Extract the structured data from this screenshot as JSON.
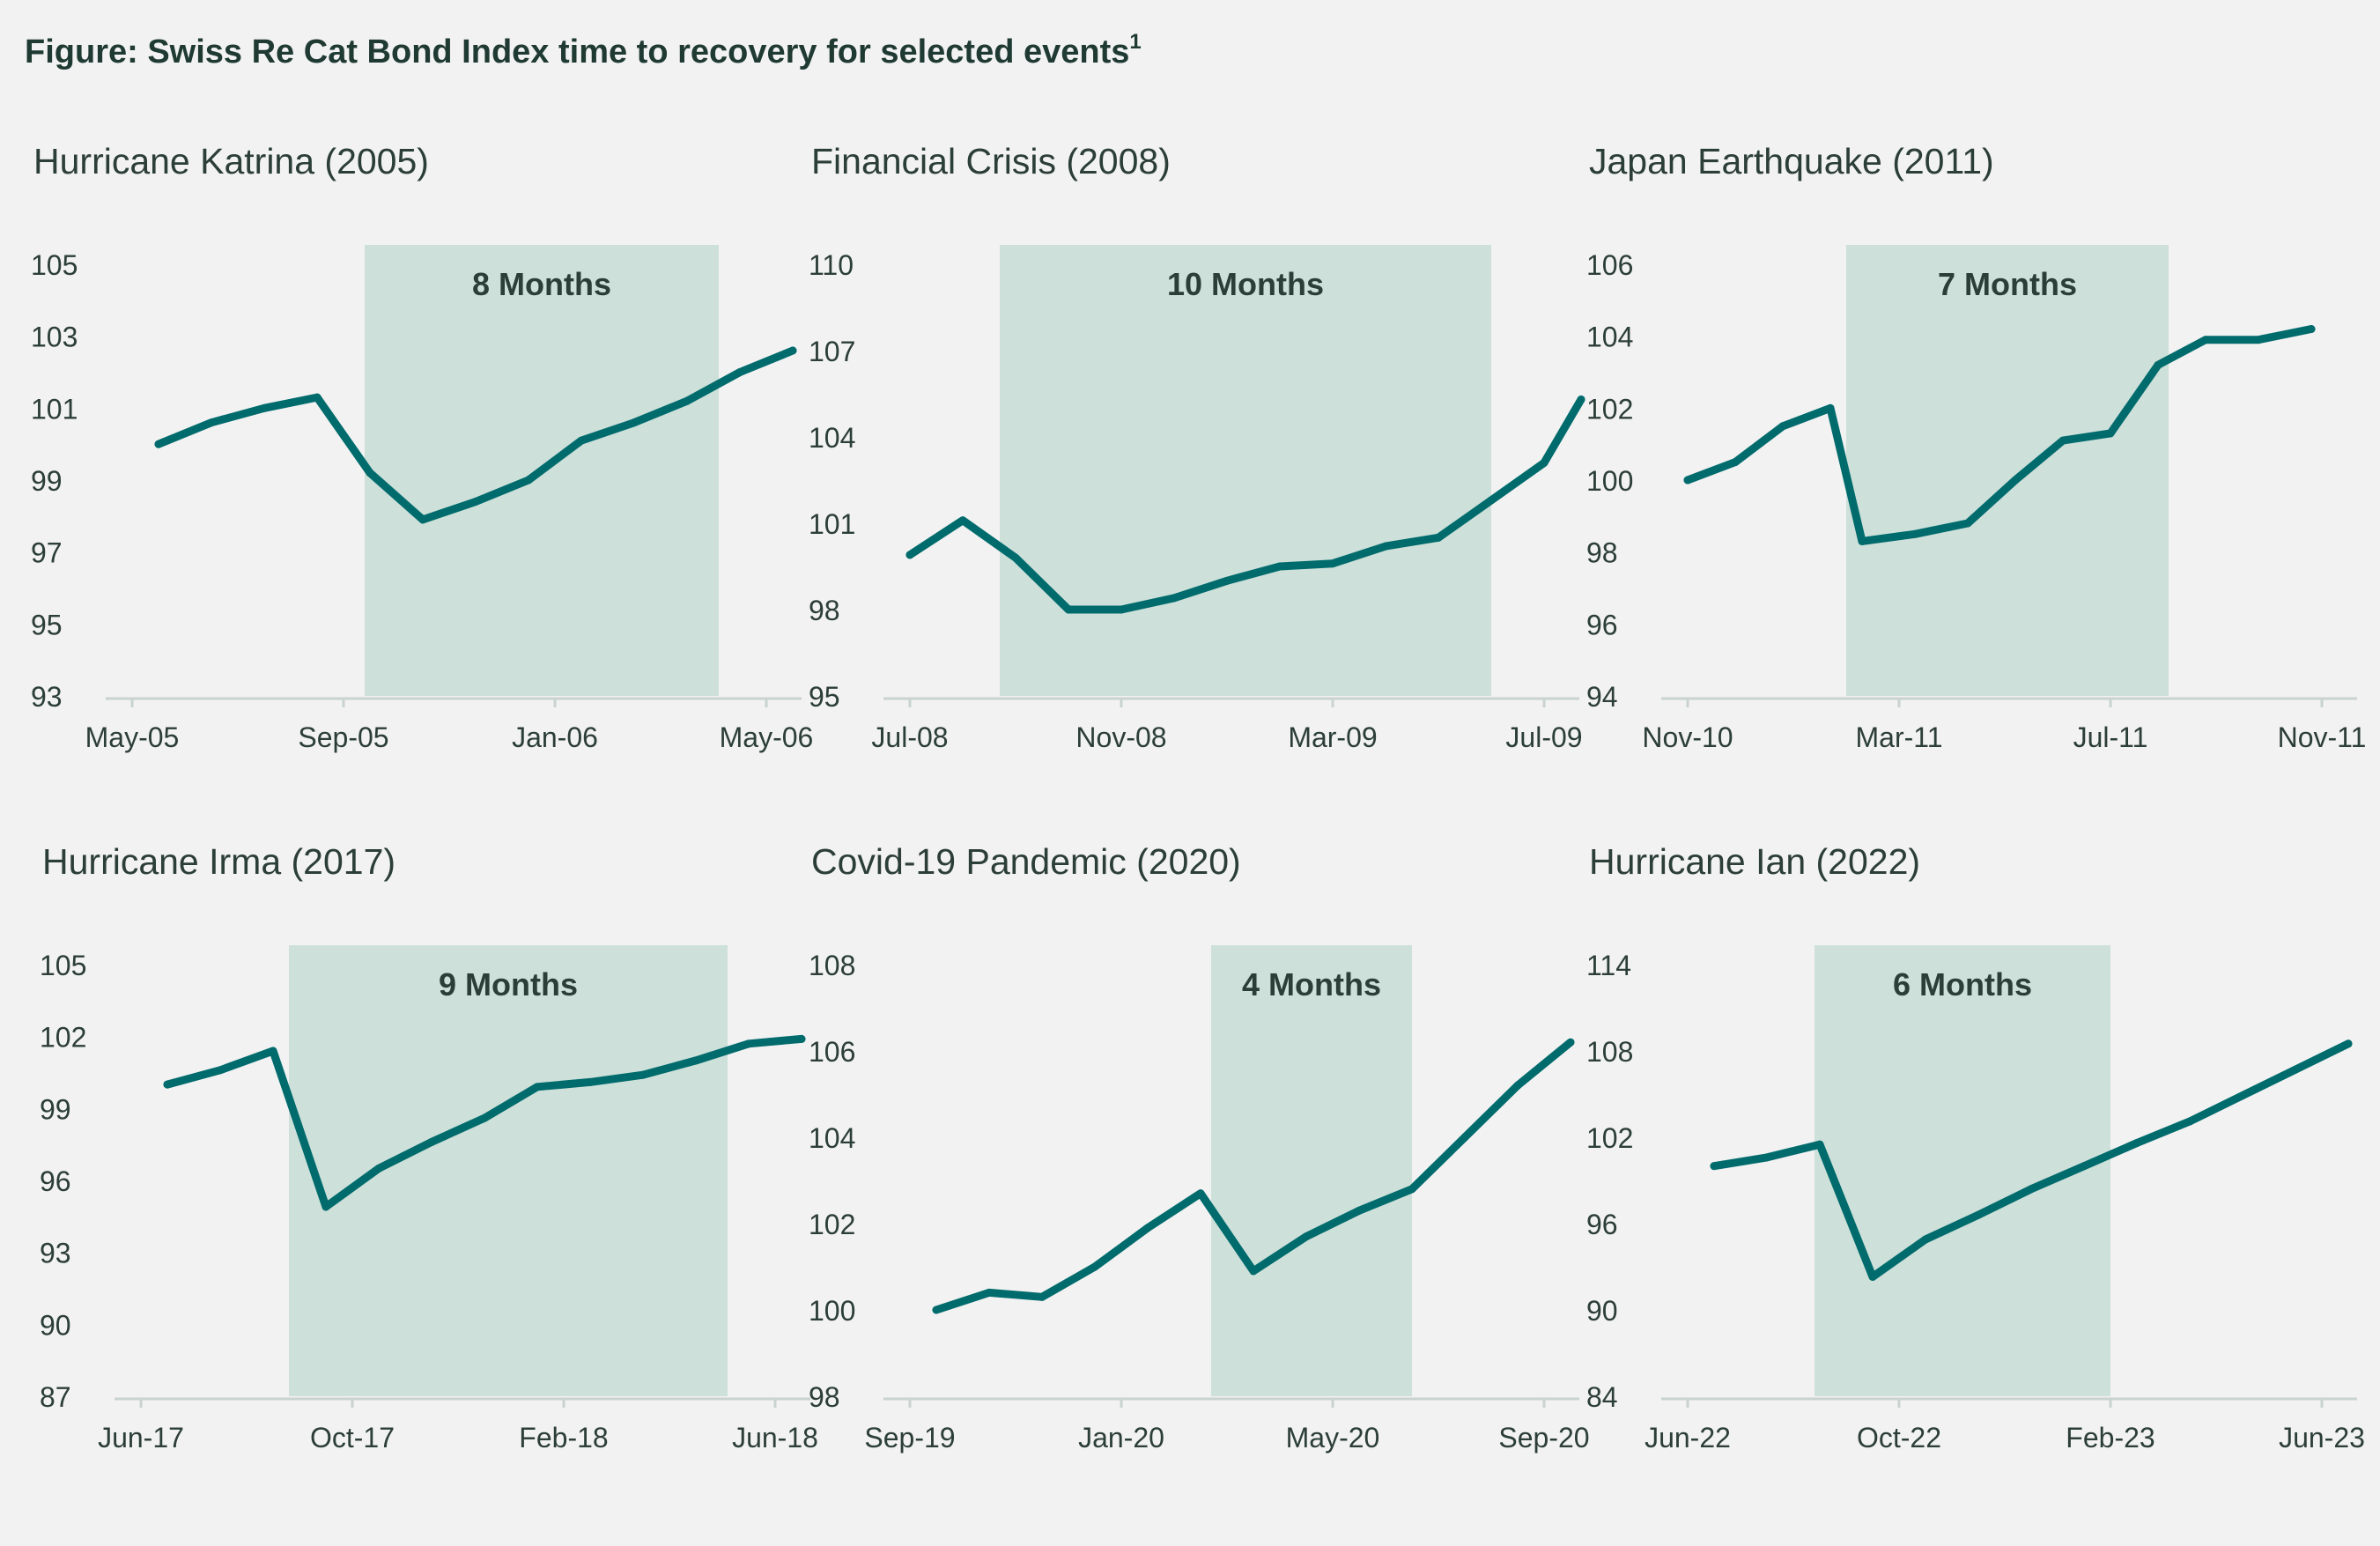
{
  "figure": {
    "title": "Figure: Swiss Re Cat Bond Index time to recovery for selected events",
    "footnote_marker": "1"
  },
  "colors": {
    "background": "#f2f2f2",
    "line": "#006b6c",
    "shade": "#cde0da",
    "axis": "#c9d3d0",
    "text": "#2c3e38"
  },
  "chart_data": [
    {
      "type": "line",
      "title": "Hurricane Katrina (2005)",
      "shade_label": "8 Months",
      "shade_range": [
        4.4,
        11.1
      ],
      "yticks": [
        93,
        95,
        97,
        99,
        101,
        103,
        105
      ],
      "ylim": [
        93,
        105
      ],
      "xlim": [
        0,
        12
      ],
      "xticks": [
        {
          "x": 0,
          "label": "May-05"
        },
        {
          "x": 4,
          "label": "Sep-05"
        },
        {
          "x": 8,
          "label": "Jan-06"
        },
        {
          "x": 12,
          "label": "May-06"
        }
      ],
      "series": [
        {
          "x": [
            0.5,
            1.5,
            2.5,
            3.5,
            4.5,
            5.5,
            6.5,
            7.5,
            8.5,
            9.5,
            10.5,
            11.5,
            12.5
          ],
          "values": [
            100.0,
            100.6,
            101.0,
            101.3,
            99.2,
            97.9,
            98.4,
            99.0,
            100.1,
            100.6,
            101.2,
            102.0,
            102.6
          ]
        }
      ]
    },
    {
      "type": "line",
      "title": "Financial Crisis (2008)",
      "shade_label": "10 Months",
      "shade_range": [
        1.7,
        11.0
      ],
      "yticks": [
        95,
        98,
        101,
        104,
        107,
        110
      ],
      "ylim": [
        95,
        110
      ],
      "xlim": [
        0,
        12
      ],
      "xticks": [
        {
          "x": 0,
          "label": "Jul-08"
        },
        {
          "x": 4,
          "label": "Nov-08"
        },
        {
          "x": 8,
          "label": "Mar-09"
        },
        {
          "x": 12,
          "label": "Jul-09"
        }
      ],
      "series": [
        {
          "x": [
            0,
            1,
            2,
            3,
            4,
            5,
            6,
            7,
            8,
            9,
            10,
            11,
            12,
            12.7
          ],
          "values": [
            99.9,
            101.1,
            99.8,
            98.0,
            98.0,
            98.4,
            99.0,
            99.5,
            99.6,
            100.2,
            100.5,
            101.8,
            103.1,
            105.3
          ]
        }
      ]
    },
    {
      "type": "line",
      "title": "Japan Earthquake (2011)",
      "shade_label": "7 Months",
      "shade_range": [
        3.0,
        9.1
      ],
      "yticks": [
        94,
        96,
        98,
        100,
        102,
        104,
        106
      ],
      "ylim": [
        94,
        106
      ],
      "xlim": [
        0,
        12
      ],
      "xticks": [
        {
          "x": 0,
          "label": "Nov-10"
        },
        {
          "x": 4,
          "label": "Mar-11"
        },
        {
          "x": 8,
          "label": "Jul-11"
        },
        {
          "x": 12,
          "label": "Nov-11"
        }
      ],
      "series": [
        {
          "x": [
            0,
            0.9,
            1.8,
            2.7,
            3.3,
            4.3,
            5.3,
            6.2,
            7.1,
            8.0,
            8.9,
            9.8,
            10.8,
            11.8
          ],
          "values": [
            100.0,
            100.5,
            101.5,
            102.0,
            98.3,
            98.5,
            98.8,
            100.0,
            101.1,
            101.3,
            103.2,
            103.9,
            103.9,
            104.2
          ]
        }
      ]
    },
    {
      "type": "line",
      "title": "Hurricane Irma (2017)",
      "shade_label": "9 Months",
      "shade_range": [
        2.8,
        11.1
      ],
      "yticks": [
        87,
        90,
        93,
        96,
        99,
        102,
        105
      ],
      "ylim": [
        87,
        105
      ],
      "xlim": [
        0,
        12
      ],
      "xticks": [
        {
          "x": 0,
          "label": "Jun-17"
        },
        {
          "x": 4,
          "label": "Oct-17"
        },
        {
          "x": 8,
          "label": "Feb-18"
        },
        {
          "x": 12,
          "label": "Jun-18"
        }
      ],
      "series": [
        {
          "x": [
            0.5,
            1.5,
            2.5,
            3.5,
            4.5,
            5.5,
            6.5,
            7.5,
            8.5,
            9.5,
            10.5,
            11.5,
            12.5
          ],
          "values": [
            100.0,
            100.6,
            101.4,
            94.9,
            96.5,
            97.6,
            98.6,
            99.9,
            100.1,
            100.4,
            101.0,
            101.7,
            101.9
          ]
        }
      ]
    },
    {
      "type": "line",
      "title": "Covid-19 Pandemic (2020)",
      "shade_label": "4 Months",
      "shade_range": [
        5.7,
        9.5
      ],
      "yticks": [
        98,
        100,
        102,
        104,
        106,
        108
      ],
      "ylim": [
        98,
        108
      ],
      "xlim": [
        0,
        12
      ],
      "xticks": [
        {
          "x": 0,
          "label": "Sep-19"
        },
        {
          "x": 4,
          "label": "Jan-20"
        },
        {
          "x": 8,
          "label": "May-20"
        },
        {
          "x": 12,
          "label": "Sep-20"
        }
      ],
      "series": [
        {
          "x": [
            0.5,
            1.5,
            2.5,
            3.5,
            4.5,
            5.5,
            6.5,
            7.5,
            8.5,
            9.5,
            10.5,
            11.5,
            12.5
          ],
          "values": [
            100.0,
            100.4,
            100.3,
            101.0,
            101.9,
            102.7,
            100.9,
            101.7,
            102.3,
            102.8,
            104.0,
            105.2,
            106.2
          ]
        }
      ]
    },
    {
      "type": "line",
      "title": "Hurricane Ian (2022)",
      "shade_label": "6 Months",
      "shade_range": [
        2.4,
        8.0
      ],
      "yticks": [
        84,
        90,
        96,
        102,
        108,
        114
      ],
      "ylim": [
        84,
        114
      ],
      "xlim": [
        0,
        12
      ],
      "xticks": [
        {
          "x": 0,
          "label": "Jun-22"
        },
        {
          "x": 4,
          "label": "Oct-22"
        },
        {
          "x": 8,
          "label": "Feb-23"
        },
        {
          "x": 12,
          "label": "Jun-23"
        }
      ],
      "series": [
        {
          "x": [
            0.5,
            1.5,
            2.5,
            3.5,
            4.5,
            5.5,
            6.5,
            7.5,
            8.5,
            9.5,
            10.5,
            11.5,
            12.5
          ],
          "values": [
            100.0,
            100.6,
            101.5,
            92.3,
            94.9,
            96.6,
            98.4,
            100.0,
            101.6,
            103.1,
            104.9,
            106.7,
            108.5
          ]
        }
      ]
    }
  ]
}
